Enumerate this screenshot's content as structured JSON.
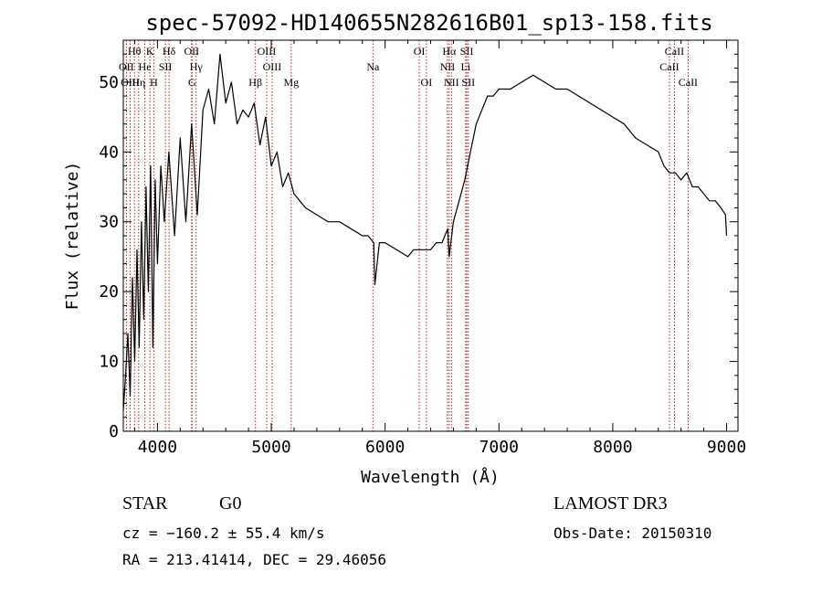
{
  "chart_data": {
    "type": "line",
    "title": "spec-57092-HD140655N282616B01_sp13-158.fits",
    "xlabel": "Wavelength (Å)",
    "ylabel": "Flux (relative)",
    "xlim": [
      3700,
      9100
    ],
    "ylim": [
      0,
      56
    ],
    "xticks": [
      4000,
      5000,
      6000,
      7000,
      8000,
      9000
    ],
    "yticks": [
      0,
      10,
      20,
      30,
      40,
      50
    ],
    "series": [
      {
        "x": [
          3700,
          3720,
          3740,
          3760,
          3780,
          3800,
          3820,
          3840,
          3860,
          3880,
          3900,
          3920,
          3940,
          3960,
          3980,
          4000,
          4030,
          4060,
          4100,
          4150,
          4200,
          4250,
          4300,
          4350,
          4400,
          4450,
          4500,
          4550,
          4600,
          4650,
          4700,
          4750,
          4800,
          4850,
          4900,
          4950,
          5000,
          5050,
          5100,
          5150,
          5200,
          5300,
          5400,
          5500,
          5600,
          5700,
          5800,
          5850,
          5900,
          5910,
          5950,
          6000,
          6100,
          6200,
          6250,
          6300,
          6350,
          6400,
          6450,
          6500,
          6550,
          6563,
          6600,
          6650,
          6700,
          6750,
          6800,
          6850,
          6900,
          6950,
          7000,
          7100,
          7200,
          7300,
          7400,
          7500,
          7600,
          7700,
          7800,
          7900,
          8000,
          8100,
          8200,
          8300,
          8400,
          8450,
          8500,
          8550,
          8600,
          8650,
          8700,
          8750,
          8800,
          8850,
          8900,
          8950,
          8990,
          9000
        ],
        "values": [
          3,
          8,
          14,
          5,
          22,
          10,
          26,
          12,
          30,
          16,
          35,
          20,
          38,
          12,
          36,
          24,
          38,
          30,
          40,
          28,
          42,
          30,
          44,
          31,
          46,
          49,
          44,
          54,
          47,
          50,
          44,
          46,
          45,
          47,
          41,
          45,
          38,
          40,
          35,
          37,
          34,
          32,
          31,
          30,
          30,
          29,
          28,
          28,
          27,
          21,
          27,
          27,
          26,
          25,
          26,
          26,
          26,
          26,
          27,
          27,
          29,
          25,
          30,
          33,
          36,
          40,
          44,
          46,
          48,
          48,
          49,
          49,
          50,
          51,
          50,
          49,
          49,
          48,
          47,
          46,
          45,
          44,
          42,
          41,
          40,
          38,
          37,
          37,
          36,
          37,
          35,
          35,
          34,
          33,
          33,
          32,
          31,
          28
        ]
      }
    ],
    "markers": [
      {
        "label": "Hθ",
        "x": 3798,
        "row": 1
      },
      {
        "label": "K",
        "x": 3934,
        "row": 1
      },
      {
        "label": "Hδ",
        "x": 4102,
        "row": 1
      },
      {
        "label": "OII",
        "x": 4300,
        "row": 1
      },
      {
        "label": "OIII",
        "x": 4959,
        "row": 1
      },
      {
        "label": "OI",
        "x": 6300,
        "row": 1
      },
      {
        "label": "Hα",
        "x": 6563,
        "row": 1
      },
      {
        "label": "SII",
        "x": 6717,
        "row": 1
      },
      {
        "label": "CaII",
        "x": 8542,
        "row": 1
      },
      {
        "label": "OII",
        "x": 3727,
        "row": 2
      },
      {
        "label": "He",
        "x": 3889,
        "row": 2
      },
      {
        "label": "SII",
        "x": 4070,
        "row": 2
      },
      {
        "label": "Hγ",
        "x": 4340,
        "row": 2
      },
      {
        "label": "OIII",
        "x": 5007,
        "row": 2
      },
      {
        "label": "Na",
        "x": 5893,
        "row": 2
      },
      {
        "label": "NII",
        "x": 6548,
        "row": 2
      },
      {
        "label": "Li",
        "x": 6708,
        "row": 2
      },
      {
        "label": "CaII",
        "x": 8498,
        "row": 2
      },
      {
        "label": "OIII",
        "x": 3760,
        "row": 3
      },
      {
        "label": "Hη",
        "x": 3835,
        "row": 3
      },
      {
        "label": "H",
        "x": 3968,
        "row": 3
      },
      {
        "label": "G",
        "x": 4304,
        "row": 3
      },
      {
        "label": "Hβ",
        "x": 4861,
        "row": 3
      },
      {
        "label": "Mg",
        "x": 5175,
        "row": 3
      },
      {
        "label": "OI",
        "x": 6363,
        "row": 3
      },
      {
        "label": "NII",
        "x": 6583,
        "row": 3
      },
      {
        "label": "SII",
        "x": 6731,
        "row": 3
      },
      {
        "label": "CaII",
        "x": 8662,
        "row": 3
      }
    ]
  },
  "info": {
    "class": "STAR",
    "subclass": "G0",
    "survey": "LAMOST DR3",
    "cz": "cz = −160.2 ± 55.4 km/s",
    "obs_date": "Obs-Date: 20150310",
    "coords": "RA = 213.41414, DEC =  29.46056"
  },
  "colors": {
    "marker_line": "#b22222",
    "spectrum": "#000000"
  }
}
